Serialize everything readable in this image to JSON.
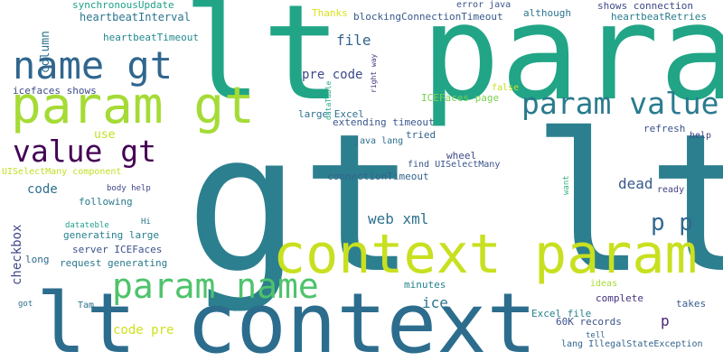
{
  "words": [
    {
      "text": "gt lt",
      "color": "#2c7f8e"
    },
    {
      "text": "lt param",
      "color": "#21a586"
    },
    {
      "text": "context param",
      "color": "#c8e020"
    },
    {
      "text": "lt context",
      "color": "#2c6d8e"
    },
    {
      "text": "param gt",
      "color": "#a5db36"
    },
    {
      "text": "name gt",
      "color": "#30668e"
    },
    {
      "text": "param name",
      "color": "#4ec36b"
    },
    {
      "text": "param value",
      "color": "#297b8e"
    },
    {
      "text": "value gt",
      "color": "#440154"
    },
    {
      "text": "p p",
      "color": "#31688e"
    },
    {
      "text": "web xml",
      "color": "#2d708e"
    },
    {
      "text": "file",
      "color": "#33638d"
    },
    {
      "text": "dead",
      "color": "#38598c"
    },
    {
      "text": "ice",
      "color": "#2b758e"
    },
    {
      "text": "p",
      "color": "#482374"
    },
    {
      "text": "code pre",
      "color": "#d0e11c"
    },
    {
      "text": "pre code",
      "color": "#3e4a89"
    },
    {
      "text": "checkbox",
      "color": "#3f4889"
    },
    {
      "text": "column",
      "color": "#2d718e"
    },
    {
      "text": "code",
      "color": "#2e6e8e"
    },
    {
      "text": "use",
      "color": "#c2df23"
    },
    {
      "text": "synchronousUpdate",
      "color": "#1fa088"
    },
    {
      "text": "heartbeatInterval",
      "color": "#2b758e"
    },
    {
      "text": "heartbeatTimeout",
      "color": "#23888e"
    },
    {
      "text": "heartbeatRetries",
      "color": "#287d8e"
    },
    {
      "text": "shows connection",
      "color": "#3f4889"
    },
    {
      "text": "blockingConnectionTimeout",
      "color": "#38598c"
    },
    {
      "text": "Thanks",
      "color": "#d8e219"
    },
    {
      "text": "although",
      "color": "#2b748e"
    },
    {
      "text": "error java",
      "color": "#3b528b"
    },
    {
      "text": "icefaces shows",
      "color": "#3e4c8a"
    },
    {
      "text": "UISelectMany component",
      "color": "#c2df23"
    },
    {
      "text": "ICEFaces page",
      "color": "#7ad151"
    },
    {
      "text": "large Excel",
      "color": "#2e6f8e"
    },
    {
      "text": "extending timeout",
      "color": "#39568c"
    },
    {
      "text": "tried",
      "color": "#33638d"
    },
    {
      "text": "false",
      "color": "#c5e021"
    },
    {
      "text": "refresh",
      "color": "#3b528b"
    },
    {
      "text": "help",
      "color": "#424086"
    },
    {
      "text": "java lang",
      "color": "#2e6e8e"
    },
    {
      "text": "wheel",
      "color": "#3e4a89"
    },
    {
      "text": "find UISelectMany",
      "color": "#3a548c"
    },
    {
      "text": "connectionTimeout",
      "color": "#33638d"
    },
    {
      "text": "ready",
      "color": "#424086"
    },
    {
      "text": "want",
      "color": "#35b779"
    },
    {
      "text": "following",
      "color": "#2a788e"
    },
    {
      "text": "body help",
      "color": "#404688"
    },
    {
      "text": "dataTable",
      "color": "#22a785"
    },
    {
      "text": "right way",
      "color": "#46327e"
    },
    {
      "text": "datateble",
      "color": "#1f9e89"
    },
    {
      "text": "Hi",
      "color": "#2a788e"
    },
    {
      "text": "generating large",
      "color": "#277f8e"
    },
    {
      "text": "server ICEFaces",
      "color": "#3b518b"
    },
    {
      "text": "long",
      "color": "#31688e"
    },
    {
      "text": "request generating",
      "color": "#2a778e"
    },
    {
      "text": "minutes",
      "color": "#26828e"
    },
    {
      "text": "ideas",
      "color": "#a8db34"
    },
    {
      "text": "complete",
      "color": "#46337f"
    },
    {
      "text": "takes",
      "color": "#365d8d"
    },
    {
      "text": "Excel file",
      "color": "#26828e"
    },
    {
      "text": "60K records",
      "color": "#3b528b"
    },
    {
      "text": "tell",
      "color": "#32648e"
    },
    {
      "text": "lang IllegalStateException",
      "color": "#33638d"
    },
    {
      "text": "Tam",
      "color": "#2c728e"
    },
    {
      "text": "got",
      "color": "#2d708e"
    }
  ]
}
